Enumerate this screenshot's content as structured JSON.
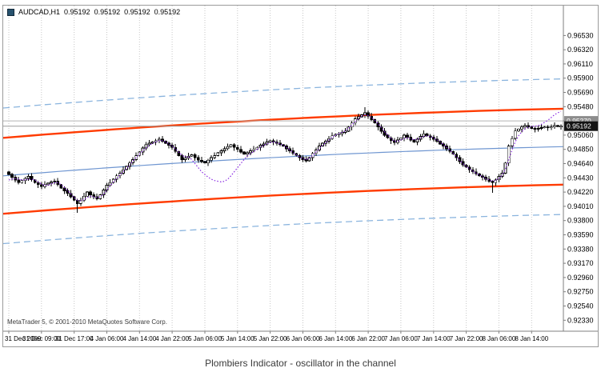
{
  "header": {
    "symbol_timeframe": "AUDCAD,H1",
    "open": "0.95192",
    "high": "0.95192",
    "low": "0.95192",
    "close": "0.95192"
  },
  "footer": {
    "copyright": "MetaTrader 5, © 2001-2010 MetaQuotes Software Corp."
  },
  "caption": {
    "text": "Plombiers Indicator - oscillator in the channel"
  },
  "chart_data": {
    "type": "candlestick",
    "title": "AUDCAD,H1",
    "legend": "none",
    "grid": "vertical-dotted",
    "pip": 0.0001,
    "price_axis": {
      "range_top": 0.969,
      "range_bottom": 0.9218,
      "step": 0.0021,
      "tick_labels": [
        "0.96530",
        "0.96320",
        "0.96110",
        "0.95900",
        "0.95690",
        "0.95480",
        "0.95270",
        "0.95060",
        "0.94850",
        "0.94640",
        "0.94430",
        "0.94220",
        "0.94010",
        "0.93800",
        "0.93590",
        "0.93380",
        "0.93170",
        "0.92960",
        "0.92750",
        "0.92540",
        "0.92330"
      ]
    },
    "time_axis": {
      "tick_labels": [
        "31 Dec 2009",
        "31 Dec 09:00",
        "31 Dec 17:00",
        "4 Jan 06:00",
        "4 Jan 14:00",
        "4 Jan 22:00",
        "5 Jan 06:00",
        "5 Jan 14:00",
        "5 Jan 22:00",
        "6 Jan 06:00",
        "6 Jan 14:00",
        "6 Jan 22:00",
        "7 Jan 06:00",
        "7 Jan 14:00",
        "7 Jan 22:00",
        "8 Jan 06:00",
        "8 Jan 14:00"
      ],
      "tick_bars": [
        0,
        10,
        20,
        30,
        40,
        50,
        60,
        70,
        80,
        90,
        100,
        110,
        120,
        130,
        140,
        150,
        160
      ]
    },
    "candles": {
      "first_open_pips": 9452,
      "closes_pips": [
        9448,
        9444,
        9440,
        9436,
        9439,
        9442,
        9445,
        9440,
        9436,
        9433,
        9430,
        9433,
        9435,
        9437,
        9438,
        9433,
        9428,
        9424,
        9420,
        9415,
        9410,
        9405,
        9410,
        9416,
        9422,
        9418,
        9415,
        9412,
        9418,
        9425,
        9432,
        9436,
        9441,
        9446,
        9450,
        9455,
        9460,
        9465,
        9470,
        9476,
        9481,
        9487,
        9492,
        9494,
        9496,
        9498,
        9500,
        9497,
        9494,
        9491,
        9488,
        9482,
        9476,
        9470,
        9472,
        9475,
        9477,
        9473,
        9469,
        9467,
        9465,
        9469,
        9473,
        9476,
        9480,
        9483,
        9486,
        9489,
        9492,
        9488,
        9485,
        9481,
        9478,
        9480,
        9483,
        9485,
        9488,
        9491,
        9493,
        9496,
        9498,
        9496,
        9494,
        9492,
        9490,
        9486,
        9483,
        9479,
        9476,
        9473,
        9470,
        9468,
        9473,
        9479,
        9484,
        9490,
        9494,
        9497,
        9501,
        9505,
        9507,
        9508,
        9510,
        9512,
        9518,
        9524,
        9530,
        9533,
        9536,
        9539,
        9534,
        9529,
        9524,
        9518,
        9512,
        9506,
        9502,
        9498,
        9495,
        9499,
        9502,
        9506,
        9503,
        9499,
        9496,
        9500,
        9504,
        9508,
        9505,
        9503,
        9500,
        9497,
        9493,
        9490,
        9486,
        9482,
        9478,
        9473,
        9467,
        9462,
        9459,
        9455,
        9452,
        9449,
        9446,
        9444,
        9441,
        9438,
        9436,
        9440,
        9445,
        9450,
        9465,
        9490,
        9501,
        9512,
        9515,
        9518,
        9520,
        9518,
        9516,
        9515,
        9516,
        9517,
        9518,
        9517,
        9518,
        9520,
        9519.2,
        9519.2
      ],
      "special_wicks_pips": {
        "21": -9,
        "109": 6,
        "148": -14
      }
    },
    "oscillator_pips": [
      9440,
      9441,
      9442,
      9441,
      9440,
      9440,
      9441,
      9441,
      9440,
      9437,
      9434,
      9432,
      9432,
      9434,
      9436,
      9436,
      9433,
      9429,
      9424,
      9419,
      9414,
      9410,
      9409,
      9411,
      9414,
      9416,
      9415,
      9414,
      9415,
      9419,
      9425,
      9431,
      9437,
      9442,
      9447,
      9452,
      9457,
      9462,
      9468,
      9473,
      9478,
      9483,
      9487,
      9491,
      9494,
      9496,
      9498,
      9498,
      9496,
      9493,
      9490,
      9486,
      9481,
      9476,
      9474,
      9474,
      9470,
      9464,
      9458,
      9452,
      9448,
      9444,
      9441,
      9439,
      9438,
      9437,
      9438,
      9441,
      9446,
      9452,
      9458,
      9464,
      9470,
      9475,
      9479,
      9482,
      9485,
      9488,
      9491,
      9493,
      9495,
      9496,
      9495,
      9493,
      9491,
      9488,
      9484,
      9481,
      9477,
      9474,
      9471,
      9470,
      9472,
      9476,
      9481,
      9486,
      9491,
      9495,
      9499,
      9503,
      9506,
      9508,
      9510,
      9512,
      9516,
      9521,
      9526,
      9530,
      9534,
      9536,
      9535,
      9532,
      9528,
      9523,
      9517,
      9511,
      9506,
      9501,
      9497,
      9497,
      9499,
      9501,
      9502,
      9501,
      9499,
      9500,
      9502,
      9504,
      9505,
      9504,
      9502,
      9499,
      9496,
      9492,
      9488,
      9484,
      9479,
      9474,
      9469,
      9464,
      9460,
      9456,
      9453,
      9450,
      9447,
      9445,
      9442,
      9440,
      9438,
      9439,
      9442,
      9447,
      9456,
      9470,
      9484,
      9496,
      9505,
      9511,
      9516,
      9518,
      9519,
      9519,
      9520,
      9522,
      9525,
      9528,
      9532,
      9536,
      9539,
      9541
    ],
    "bands": {
      "center_poly": {
        "a": 0.9446,
        "b": 0.0068,
        "c": -0.0025
      },
      "orange_offset": 0.0056,
      "outer_offset": 0.01
    },
    "hlines": [
      {
        "price_pips": 9527.0,
        "label": "0.95270",
        "line_color_key": "hline1",
        "tag_bg_key": "tag1_bg"
      },
      {
        "price_pips": 9519.2,
        "label": "0.95192",
        "line_color_key": "hline2",
        "tag_bg_key": "tag2_bg"
      }
    ],
    "colors": {
      "up_candle": "#ffffff",
      "down_candle": "#000000",
      "candle_outline": "#000000",
      "band_orange": "#ff3b00",
      "band_center": "#6f96d1",
      "band_outer": "#8ab4de",
      "oscillator": "#8a2be2",
      "grid": "#c6c6c6",
      "axis_line": "#7f7f7f",
      "text": "#000000",
      "hline1": "#b4b4b4",
      "hline2": "#9a9a9a",
      "tag1_bg": "#8c8c8c",
      "tag2_bg": "#141414",
      "tag_text": "#ffffff",
      "background": "#ffffff"
    }
  }
}
